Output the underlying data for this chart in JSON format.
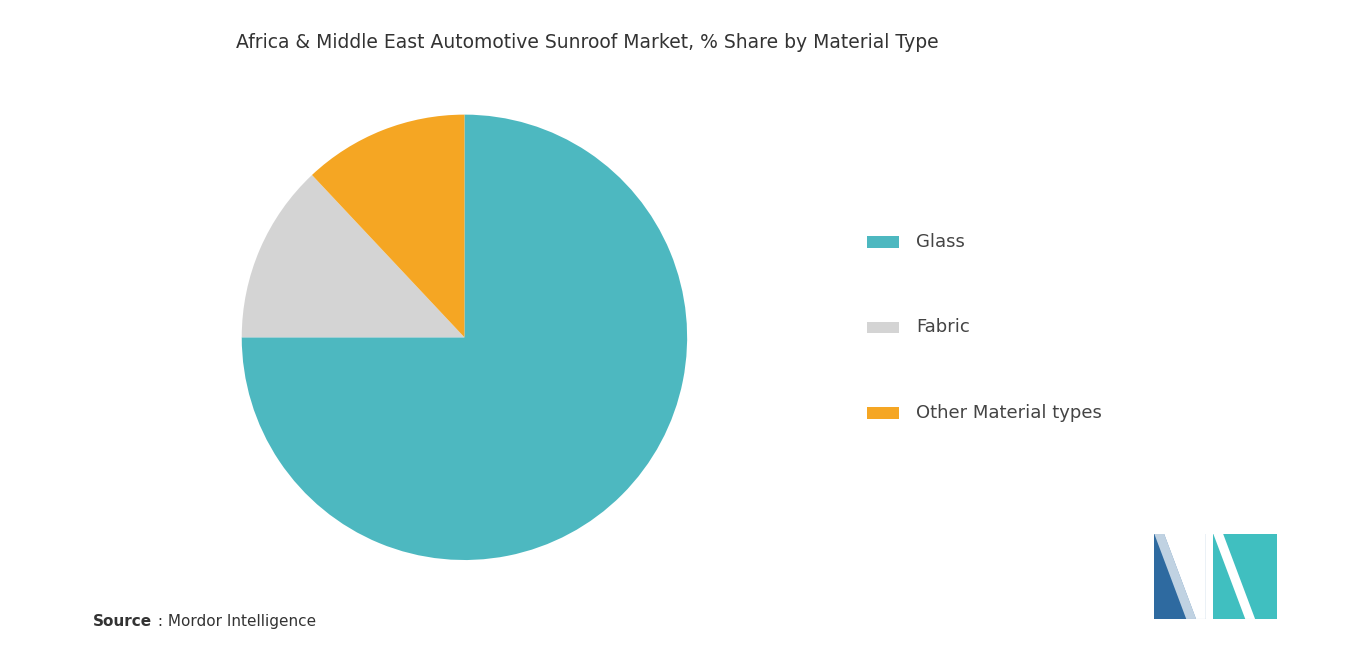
{
  "title": "Africa & Middle East Automotive Sunroof Market, % Share by Material Type",
  "slices": [
    {
      "label": "Glass",
      "value": 75,
      "color": "#4db8c0"
    },
    {
      "label": "Fabric",
      "value": 13,
      "color": "#d4d4d4"
    },
    {
      "label": "Other Material types",
      "value": 12,
      "color": "#f5a623"
    }
  ],
  "startangle": 90,
  "background_color": "#ffffff",
  "title_fontsize": 13.5,
  "legend_fontsize": 13,
  "source_bold": "Source",
  "source_regular": " : Mordor Intelligence",
  "logo_dark": "#2e6aa0",
  "logo_teal": "#40bfc0"
}
